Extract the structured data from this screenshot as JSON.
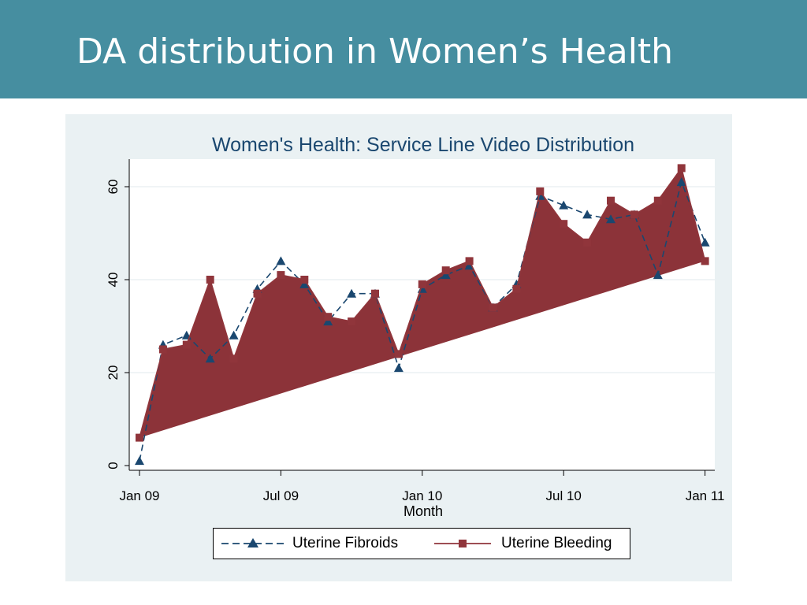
{
  "slide": {
    "title": "DA distribution in Women’s Health"
  },
  "colors": {
    "header_bg": "#468ea0",
    "panel_bg": "#eaf1f3",
    "plot_bg": "#ffffff",
    "fibroids": "#1a476f",
    "bleeding": "#90353b",
    "title_text": "#1a476f"
  },
  "chart_data": {
    "type": "line",
    "title": "Women's Health: Service Line Video Distribution",
    "xlabel": "Month",
    "ylabel": "",
    "x_ticks": [
      {
        "label": "Jan 09",
        "index": 0
      },
      {
        "label": "Jul 09",
        "index": 6
      },
      {
        "label": "Jan 10",
        "index": 12
      },
      {
        "label": "Jul 10",
        "index": 18
      },
      {
        "label": "Jan 11",
        "index": 24
      }
    ],
    "y_ticks": [
      0,
      20,
      40,
      60
    ],
    "ylim": [
      -3,
      65
    ],
    "x": [
      "Jan 09",
      "Feb 09",
      "Mar 09",
      "Apr 09",
      "May 09",
      "Jun 09",
      "Jul 09",
      "Aug 09",
      "Sep 09",
      "Oct 09",
      "Nov 09",
      "Dec 09",
      "Jan 10",
      "Feb 10",
      "Mar 10",
      "Apr 10",
      "May 10",
      "Jun 10",
      "Jul 10",
      "Aug 10",
      "Sep 10",
      "Oct 10",
      "Nov 10",
      "Dec 10",
      "Jan 11"
    ],
    "grid": true,
    "legend_position": "bottom",
    "series": [
      {
        "name": "Uterine Fibroids",
        "style": "dashed-triangle",
        "values": [
          1,
          26,
          28,
          23,
          28,
          38,
          44,
          39,
          31,
          37,
          37,
          21,
          38,
          41,
          43,
          34,
          39,
          58,
          56,
          54,
          53,
          54,
          41,
          61,
          48
        ]
      },
      {
        "name": "Uterine Bleeding",
        "style": "solid-square",
        "values": [
          6,
          25,
          26,
          40,
          23,
          37,
          41,
          40,
          32,
          31,
          37,
          24,
          39,
          42,
          44,
          34,
          38,
          59,
          52,
          48,
          57,
          54,
          57,
          64,
          44
        ]
      }
    ]
  }
}
